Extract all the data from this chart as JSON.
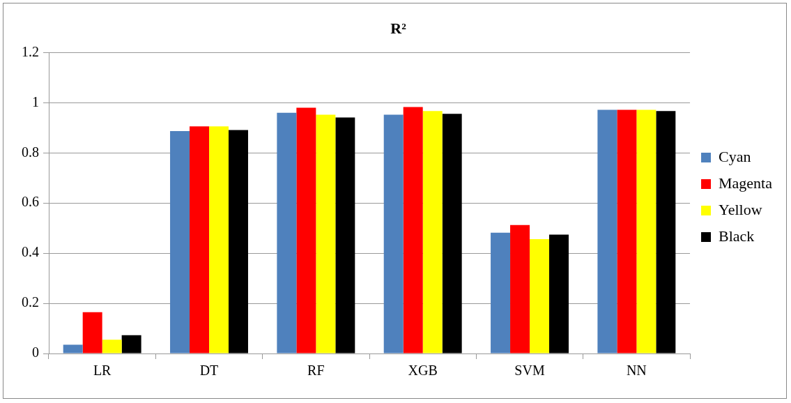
{
  "chart_data": {
    "type": "bar",
    "title": "R²",
    "categories": [
      "LR",
      "DT",
      "RF",
      "XGB",
      "SVM",
      "NN"
    ],
    "series": [
      {
        "name": "Cyan",
        "color": "#4f81bd",
        "values": [
          0.035,
          0.887,
          0.96,
          0.952,
          0.482,
          0.972
        ]
      },
      {
        "name": "Magenta",
        "color": "#ff0000",
        "values": [
          0.165,
          0.906,
          0.98,
          0.983,
          0.512,
          0.972
        ]
      },
      {
        "name": "Yellow",
        "color": "#ffff00",
        "values": [
          0.055,
          0.906,
          0.952,
          0.967,
          0.456,
          0.972
        ]
      },
      {
        "name": "Black",
        "color": "#000000",
        "values": [
          0.073,
          0.891,
          0.941,
          0.956,
          0.474,
          0.967
        ]
      }
    ],
    "ylim": [
      0,
      1.2
    ],
    "yticks": [
      0,
      0.2,
      0.4,
      0.6,
      0.8,
      1,
      1.2
    ],
    "grid": "y",
    "legend": "right"
  }
}
